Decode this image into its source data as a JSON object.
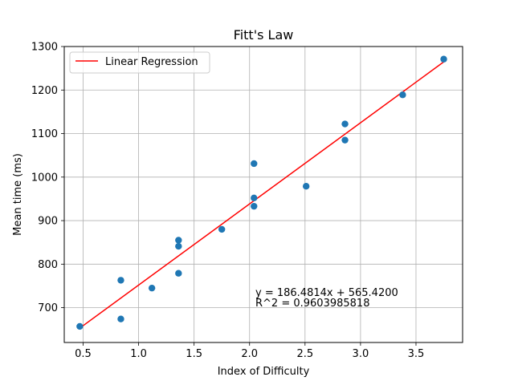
{
  "chart_data": {
    "type": "scatter",
    "title": "Fitt's Law",
    "xlabel": "Index of Difficulty",
    "ylabel": "Mean time (ms)",
    "xlim": [
      0.33,
      3.92
    ],
    "ylim": [
      620,
      1300
    ],
    "xticks": [
      0.5,
      1.0,
      1.5,
      2.0,
      2.5,
      3.0,
      3.5
    ],
    "xtick_labels": [
      "0.5",
      "1.0",
      "1.5",
      "2.0",
      "2.5",
      "3.0",
      "3.5"
    ],
    "yticks": [
      700,
      800,
      900,
      1000,
      1100,
      1200,
      1300
    ],
    "ytick_labels": [
      "700",
      "800",
      "900",
      "1000",
      "1100",
      "1200",
      "1300"
    ],
    "grid": true,
    "legend_position": "top-left",
    "series": [
      {
        "kind": "scatter",
        "color": "#1f77b4",
        "points": [
          {
            "x": 0.47,
            "y": 657
          },
          {
            "x": 0.84,
            "y": 763
          },
          {
            "x": 0.84,
            "y": 674
          },
          {
            "x": 1.12,
            "y": 745
          },
          {
            "x": 1.36,
            "y": 855
          },
          {
            "x": 1.36,
            "y": 841
          },
          {
            "x": 1.36,
            "y": 779
          },
          {
            "x": 1.75,
            "y": 880
          },
          {
            "x": 2.04,
            "y": 1031
          },
          {
            "x": 2.04,
            "y": 952
          },
          {
            "x": 2.04,
            "y": 933
          },
          {
            "x": 2.51,
            "y": 979
          },
          {
            "x": 2.86,
            "y": 1122
          },
          {
            "x": 2.86,
            "y": 1085
          },
          {
            "x": 3.38,
            "y": 1189
          },
          {
            "x": 3.75,
            "y": 1271
          }
        ]
      },
      {
        "name": "Linear Regression",
        "kind": "line",
        "color": "#ff0000",
        "slope": 186.4814,
        "intercept": 565.42,
        "x_range": [
          0.47,
          3.75
        ]
      }
    ],
    "annotations": [
      "y = 186.4814x + 565.4200",
      "R^2 = 0.9603985818"
    ]
  }
}
